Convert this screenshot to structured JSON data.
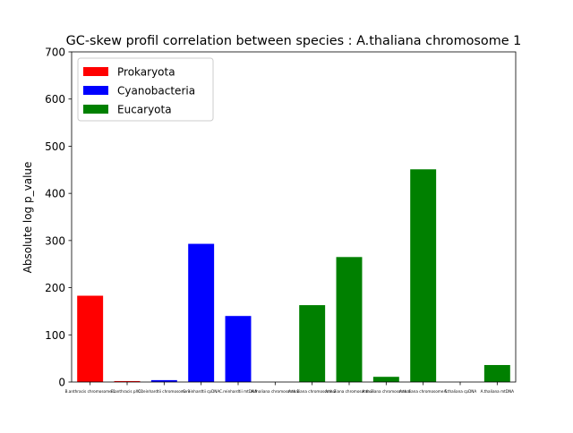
{
  "chart_data": {
    "type": "bar",
    "title": "GC-skew profil correlation between species : A.thaliana chromosome 1",
    "xlabel": "",
    "ylabel": "Absolute log p_value",
    "ylim": [
      0,
      700
    ],
    "yticks": [
      0,
      100,
      200,
      300,
      400,
      500,
      600,
      700
    ],
    "grid": false,
    "legend_position": "top-left",
    "legend": [
      {
        "label": "Prokaryota",
        "color": "#ff0000"
      },
      {
        "label": "Cyanobacteria",
        "color": "#0000ff"
      },
      {
        "label": "Eucaryota",
        "color": "#008000"
      }
    ],
    "categories": [
      "B.anthracis chromosome 1",
      "B.anthracis pXO1",
      "C.reinhardtii chromosome 1",
      "C.reinhardtii cpDNA",
      "C.reinhardtii mtDNA",
      "A.thaliana chromosome 1",
      "A.thaliana chromosome 2",
      "A.thaliana chromosome 3",
      "A.thaliana chromosome 4",
      "A.thaliana chromosome 5",
      "A.thaliana cpDNA",
      "A.thaliana mtDNA"
    ],
    "values": [
      183,
      2,
      4,
      293,
      140,
      0,
      163,
      265,
      11,
      451,
      0,
      36
    ],
    "colors": [
      "#ff0000",
      "#ff0000",
      "#0000ff",
      "#0000ff",
      "#0000ff",
      "#008000",
      "#008000",
      "#008000",
      "#008000",
      "#008000",
      "#008000",
      "#008000"
    ]
  }
}
